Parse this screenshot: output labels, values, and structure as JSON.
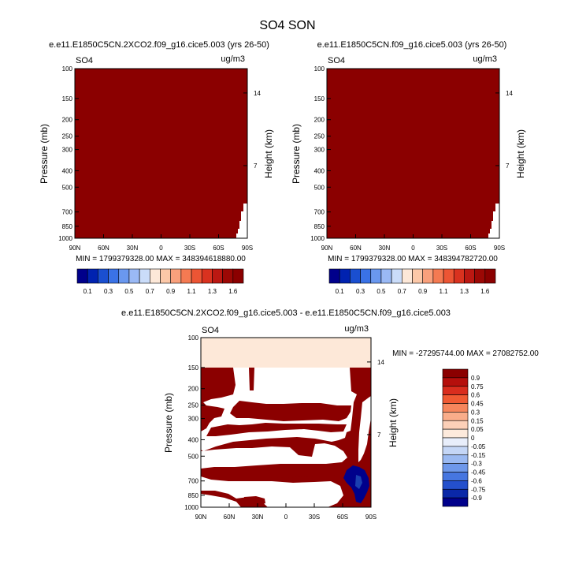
{
  "page": {
    "title": "SO4 SON"
  },
  "panels": [
    {
      "id": "left",
      "title": "e.e11.E1850C5CN.2XCO2.f09_g16.cice5.003 (yrs 26-50)",
      "corner_left": "SO4",
      "corner_right": "ug/m3",
      "min_max_text": "MIN = 1799379328.00   MAX = 348394618880.00"
    },
    {
      "id": "right",
      "title": "e.e11.E1850C5CN.f09_g16.cice5.003 (yrs 26-50)",
      "corner_left": "SO4",
      "corner_right": "ug/m3",
      "min_max_text": "MIN = 1799379328.00   MAX = 348394782720.00"
    },
    {
      "id": "diff",
      "title": "e.e11.E1850C5CN.2XCO2.f09_g16.cice5.003 - e.e11.E1850C5CN.f09_g16.cice5.003",
      "corner_left": "SO4",
      "corner_right": "ug/m3",
      "min_max_text": "MIN = -27295744.00   MAX = 27082752.00"
    }
  ],
  "colors": {
    "dark_red": "#8b0000",
    "pale_peach": "#fde8d8",
    "white": "#ffffff",
    "navy": "#00008b"
  },
  "chart_data": [
    {
      "type": "heatmap",
      "panel": "left",
      "xlabel": "",
      "ylabel": "Pressure (mb)",
      "ylabel_right": "Height (km)",
      "x_ticks": [
        "90N",
        "60N",
        "30N",
        "0",
        "30S",
        "60S",
        "90S"
      ],
      "y_ticks": [
        "100",
        "150",
        "200",
        "250",
        "300",
        "400",
        "500",
        "700",
        "850",
        "1000"
      ],
      "y_ticks_right": [
        "14",
        "7"
      ],
      "ylim": [
        1000,
        100
      ],
      "xlim": [
        90,
        -90
      ],
      "field_note": "field saturated above top contour level across the whole domain",
      "contour_levels": [
        0.1,
        0.2,
        0.3,
        0.4,
        0.5,
        0.6,
        0.7,
        0.8,
        0.9,
        1.0,
        1.1,
        1.2,
        1.3,
        1.4,
        1.5,
        1.6
      ],
      "colorbar_labels": [
        "0.1",
        "0.3",
        "0.5",
        "0.7",
        "0.9",
        "1.1",
        "1.3",
        "1.6"
      ]
    },
    {
      "type": "heatmap",
      "panel": "right",
      "xlabel": "",
      "ylabel": "Pressure (mb)",
      "ylabel_right": "Height (km)",
      "x_ticks": [
        "90N",
        "60N",
        "30N",
        "0",
        "30S",
        "60S",
        "90S"
      ],
      "y_ticks": [
        "100",
        "150",
        "200",
        "250",
        "300",
        "400",
        "500",
        "700",
        "850",
        "1000"
      ],
      "y_ticks_right": [
        "14",
        "7"
      ],
      "ylim": [
        1000,
        100
      ],
      "xlim": [
        90,
        -90
      ],
      "contour_levels": [
        0.1,
        0.2,
        0.3,
        0.4,
        0.5,
        0.6,
        0.7,
        0.8,
        0.9,
        1.0,
        1.1,
        1.2,
        1.3,
        1.4,
        1.5,
        1.6
      ],
      "colorbar_labels": [
        "0.1",
        "0.3",
        "0.5",
        "0.7",
        "0.9",
        "1.1",
        "1.3",
        "1.6"
      ]
    },
    {
      "type": "heatmap",
      "panel": "diff",
      "xlabel": "",
      "ylabel": "Pressure (mb)",
      "ylabel_right": "Height (km)",
      "x_ticks": [
        "90N",
        "60N",
        "30N",
        "0",
        "30S",
        "60S",
        "90S"
      ],
      "y_ticks": [
        "100",
        "150",
        "200",
        "250",
        "300",
        "400",
        "500",
        "700",
        "850",
        "1000"
      ],
      "y_ticks_right": [
        "14",
        "7"
      ],
      "ylim": [
        1000,
        100
      ],
      "xlim": [
        90,
        -90
      ],
      "contour_levels": [
        0.9,
        0.75,
        0.6,
        0.45,
        0.3,
        0.15,
        0.05,
        0,
        -0.05,
        -0.15,
        -0.3,
        -0.45,
        -0.6,
        -0.75,
        -0.9
      ],
      "colorbar_labels": [
        "0.9",
        "0.75",
        "0.6",
        "0.45",
        "0.3",
        "0.15",
        "0.05",
        "0",
        "-0.05",
        "-0.15",
        "-0.3",
        "-0.45",
        "-0.6",
        "-0.75",
        "-0.9"
      ]
    }
  ],
  "colorbars": {
    "top": [
      "#00008b",
      "#0022b0",
      "#1a4fd0",
      "#3a72e6",
      "#6a98ef",
      "#9ab9f5",
      "#cadcf9",
      "#fde8d8",
      "#fcc8a8",
      "#f9a07c",
      "#f47a52",
      "#ec5534",
      "#d9321f",
      "#bb1812",
      "#9c0805",
      "#8b0000"
    ],
    "diff": [
      "#8b0000",
      "#b50f0c",
      "#d92d1e",
      "#f05a33",
      "#f6865c",
      "#f9ad8a",
      "#fcd0b8",
      "#fdeadc",
      "#e8eefb",
      "#c4d6f6",
      "#9ab9f1",
      "#6e98ea",
      "#4676e0",
      "#2450cc",
      "#0a28a8",
      "#00008b"
    ]
  }
}
